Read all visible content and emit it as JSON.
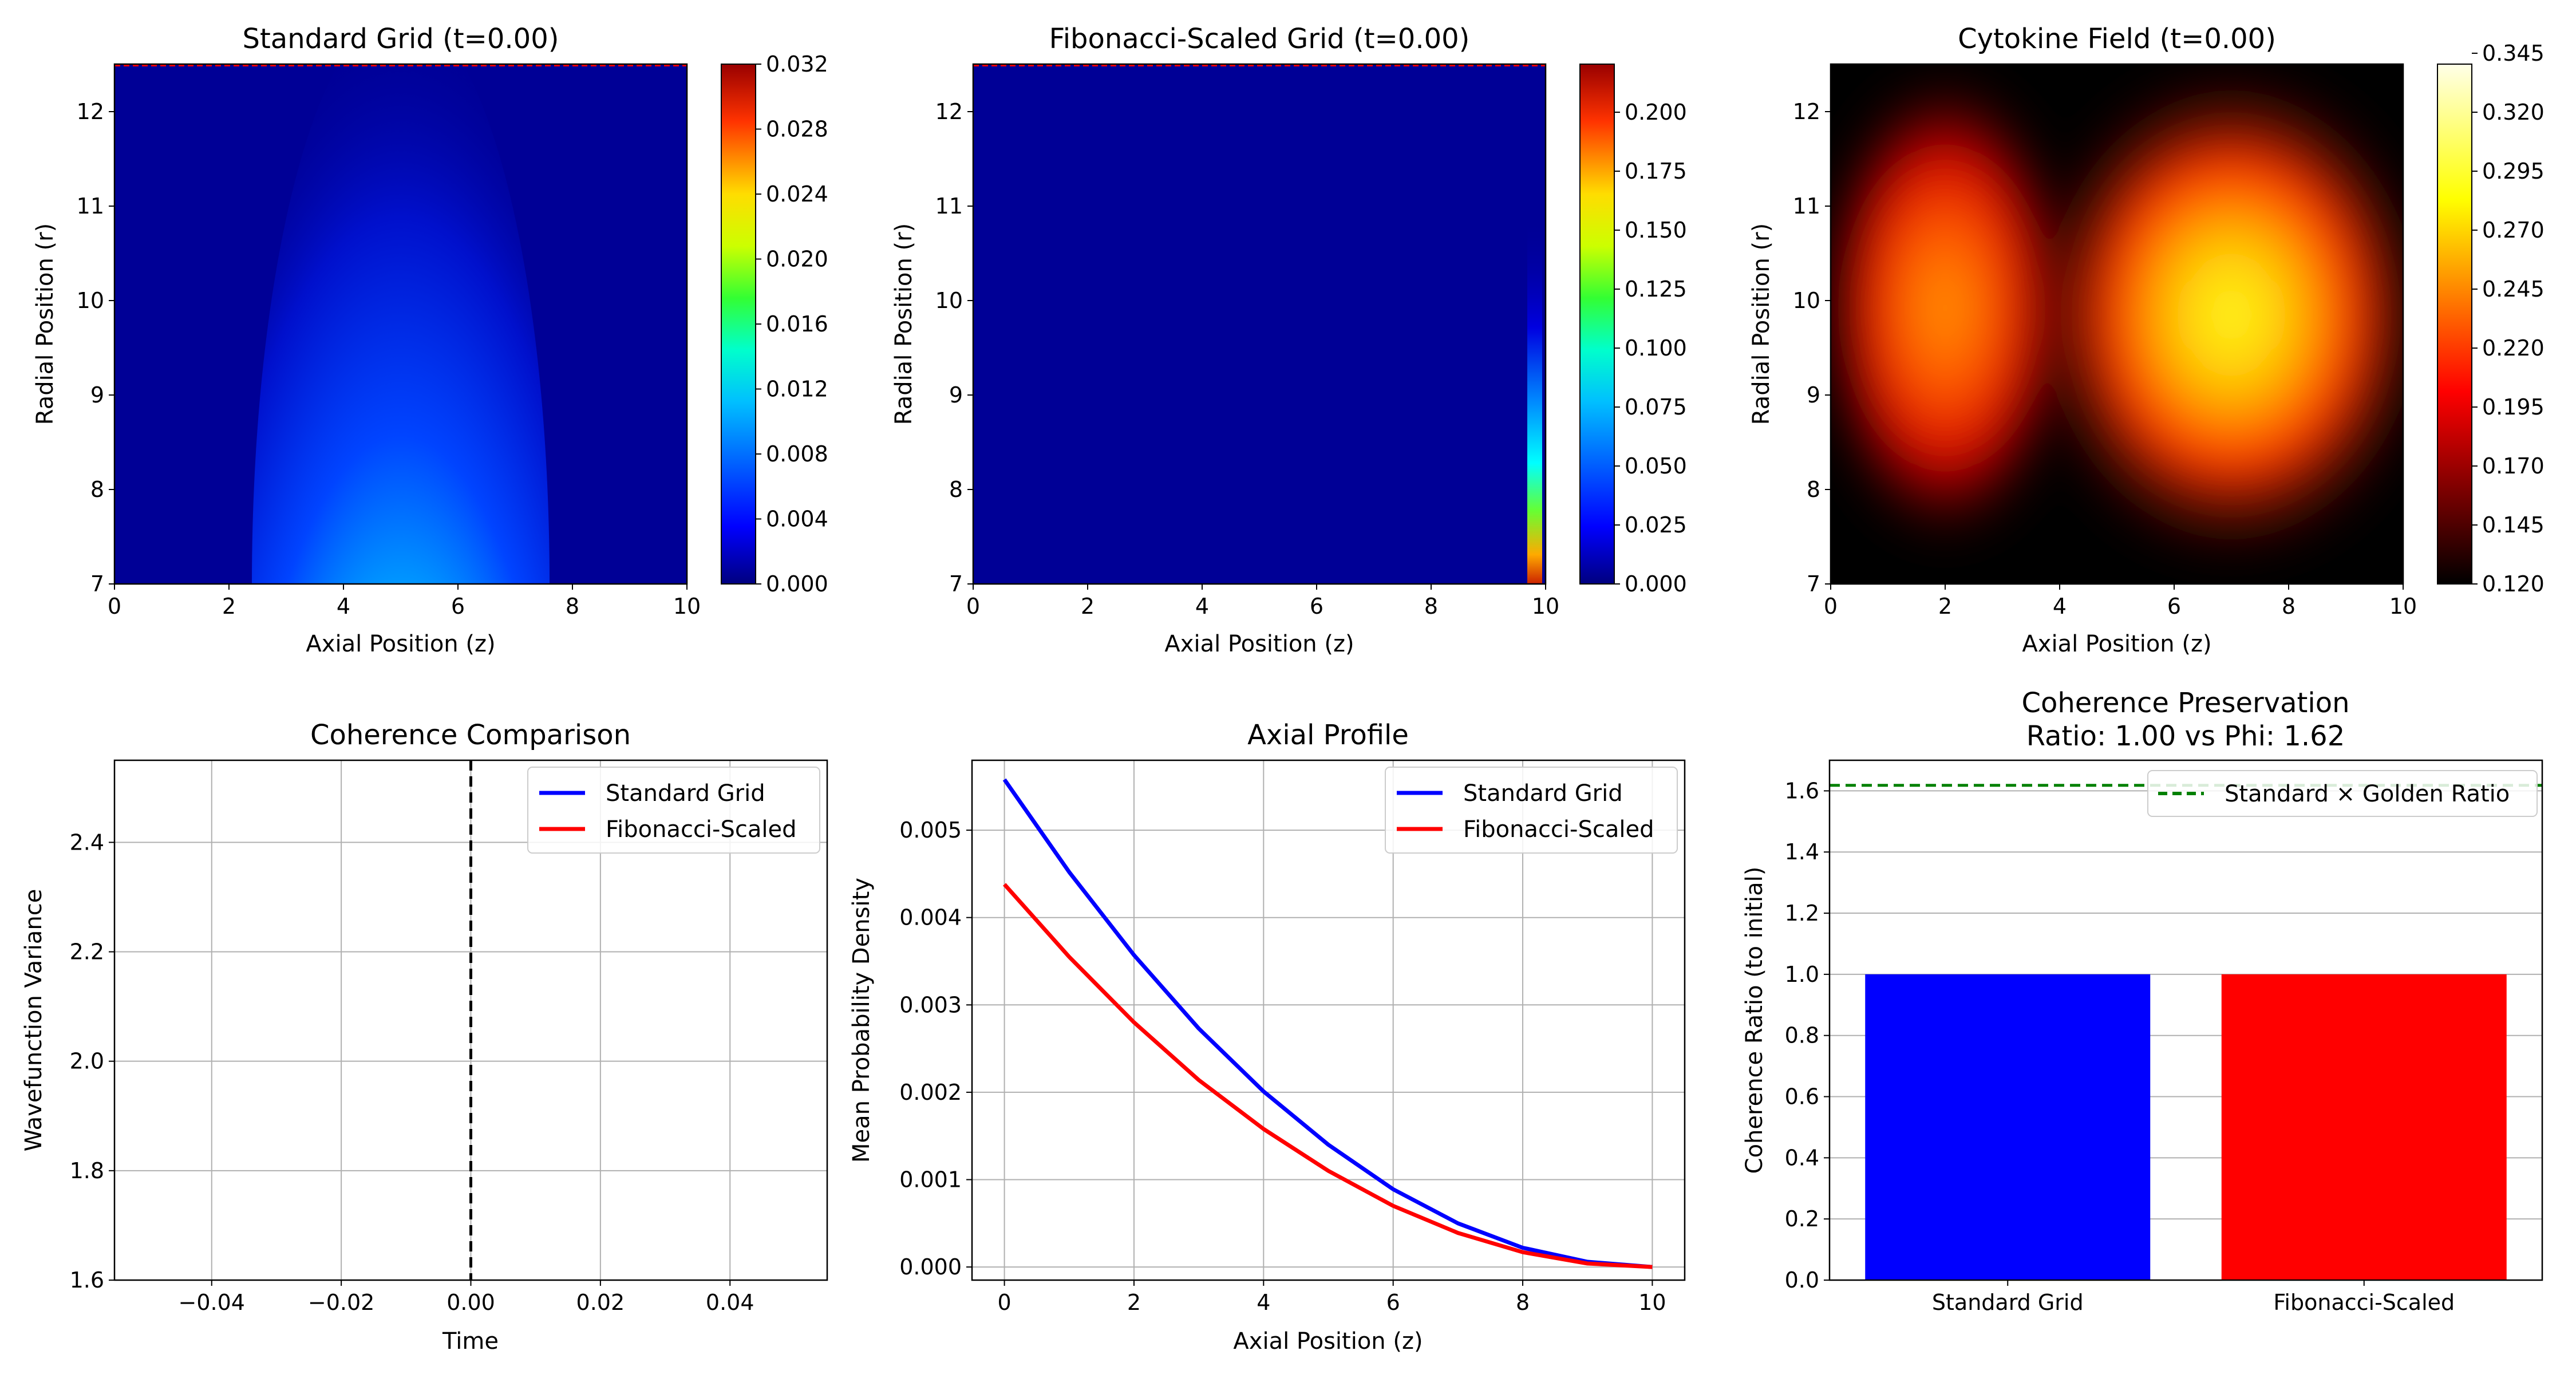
{
  "figure": {
    "background": "#ffffff"
  },
  "chart_data": [
    {
      "id": "standard-grid",
      "type": "heatmap",
      "title": "Standard Grid (t=0.00)",
      "xlabel": "Axial Position (z)",
      "ylabel": "Radial Position (r)",
      "xlim": [
        0,
        10
      ],
      "ylim": [
        7,
        12.5
      ],
      "xticks": [
        "0",
        "2",
        "4",
        "6",
        "8",
        "10"
      ],
      "yticks": [
        "7",
        "8",
        "9",
        "10",
        "11",
        "12"
      ],
      "colormap": "jet",
      "colorbar": {
        "range": [
          0,
          0.032
        ],
        "ticks": [
          "0.000",
          "0.004",
          "0.008",
          "0.012",
          "0.016",
          "0.020",
          "0.024",
          "0.028",
          "0.032"
        ]
      },
      "field": {
        "shape": "gaussian-dome",
        "center_z": 5,
        "base_r": 7,
        "peak": 0.032,
        "top_edge_line": true
      }
    },
    {
      "id": "fibonacci-grid",
      "type": "heatmap",
      "title": "Fibonacci-Scaled Grid (t=0.00)",
      "xlabel": "Axial Position (z)",
      "ylabel": "Radial Position (r)",
      "xlim": [
        0,
        10
      ],
      "ylim": [
        7,
        12.5
      ],
      "xticks": [
        "0",
        "2",
        "4",
        "6",
        "8",
        "10"
      ],
      "yticks": [
        "7",
        "8",
        "9",
        "10",
        "11",
        "12"
      ],
      "colormap": "jet",
      "colorbar": {
        "range": [
          0,
          0.22
        ],
        "ticks": [
          "0.000",
          "0.025",
          "0.050",
          "0.075",
          "0.100",
          "0.125",
          "0.150",
          "0.175",
          "0.200"
        ]
      },
      "field": {
        "shape": "edge-strip",
        "z_from": 9.7,
        "z_to": 10,
        "peak": 0.22,
        "top_edge_line": true
      }
    },
    {
      "id": "cytokine-field",
      "type": "heatmap",
      "title": "Cytokine Field (t=0.00)",
      "xlabel": "Axial Position (z)",
      "ylabel": "Radial Position (r)",
      "xlim": [
        0,
        10
      ],
      "ylim": [
        7,
        12.5
      ],
      "xticks": [
        "0",
        "2",
        "4",
        "6",
        "8",
        "10"
      ],
      "yticks": [
        "7",
        "8",
        "9",
        "10",
        "11",
        "12"
      ],
      "colormap": "hot",
      "colorbar": {
        "range": [
          0.12,
          0.36
        ],
        "ticks": [
          "0.120",
          "0.145",
          "0.170",
          "0.195",
          "0.220",
          "0.245",
          "0.270",
          "0.295",
          "0.320",
          "0.345"
        ]
      },
      "field": {
        "shape": "two-blobs",
        "blobs": [
          {
            "z": 2,
            "r": 9.8,
            "peak": 0.3
          },
          {
            "z": 7,
            "r": 9.7,
            "peak": 0.36
          }
        ],
        "floor": 0.12
      }
    },
    {
      "id": "coherence-comparison",
      "type": "line",
      "title": "Coherence Comparison",
      "xlabel": "Time",
      "ylabel": "Wavefunction Variance",
      "xlim": [
        -0.055,
        0.055
      ],
      "ylim": [
        1.6,
        2.55
      ],
      "xticks": [
        -0.04,
        -0.02,
        0.0,
        0.02,
        0.04
      ],
      "xtick_labels": [
        "−0.04",
        "−0.02",
        "0.00",
        "0.02",
        "0.04"
      ],
      "yticks": [
        1.6,
        1.8,
        2.0,
        2.2,
        2.4
      ],
      "ytick_labels": [
        "1.6",
        "1.8",
        "2.0",
        "2.2",
        "2.4"
      ],
      "vline": {
        "x": 0,
        "style": "dashed",
        "color": "#000000"
      },
      "grid": true,
      "legend": "top-right",
      "series": [
        {
          "name": "Standard Grid",
          "color": "#0000ff",
          "x": [],
          "y": []
        },
        {
          "name": "Fibonacci-Scaled",
          "color": "#ff0000",
          "x": [],
          "y": []
        }
      ]
    },
    {
      "id": "axial-profile",
      "type": "line",
      "title": "Axial Profile",
      "xlabel": "Axial Position (z)",
      "ylabel": "Mean Probability Density",
      "xlim": [
        -0.5,
        10.5
      ],
      "ylim": [
        -0.00015,
        0.0058
      ],
      "xticks": [
        0,
        2,
        4,
        6,
        8,
        10
      ],
      "xtick_labels": [
        "0",
        "2",
        "4",
        "6",
        "8",
        "10"
      ],
      "yticks": [
        0,
        0.001,
        0.002,
        0.003,
        0.004,
        0.005
      ],
      "ytick_labels": [
        "0.000",
        "0.001",
        "0.002",
        "0.003",
        "0.004",
        "0.005"
      ],
      "grid": true,
      "legend": "top-right",
      "series": [
        {
          "name": "Standard Grid",
          "color": "#0000ff",
          "x": [
            0,
            1,
            2,
            3,
            4,
            5,
            6,
            7,
            8,
            9,
            10
          ],
          "y": [
            0.00558,
            0.00452,
            0.00357,
            0.00273,
            0.00201,
            0.0014,
            0.00089,
            0.0005,
            0.00022,
            6e-05,
            0.0
          ]
        },
        {
          "name": "Fibonacci-Scaled",
          "color": "#ff0000",
          "x": [
            0,
            1,
            2,
            3,
            4,
            5,
            6,
            7,
            8,
            9,
            10
          ],
          "y": [
            0.00438,
            0.00355,
            0.0028,
            0.00214,
            0.00158,
            0.0011,
            0.0007,
            0.00039,
            0.00017,
            4e-05,
            0.0
          ]
        }
      ]
    },
    {
      "id": "coherence-preservation",
      "type": "bar",
      "title": "Coherence Preservation",
      "subtitle": "Ratio: 1.00 vs Phi: 1.62",
      "xlabel": "",
      "ylabel": "Coherence Ratio (to initial)",
      "ylim": [
        0,
        1.7
      ],
      "yticks": [
        0,
        0.2,
        0.4,
        0.6,
        0.8,
        1.0,
        1.2,
        1.4,
        1.6
      ],
      "ytick_labels": [
        "0.0",
        "0.2",
        "0.4",
        "0.6",
        "0.8",
        "1.0",
        "1.2",
        "1.4",
        "1.6"
      ],
      "categories": [
        "Standard Grid",
        "Fibonacci-Scaled"
      ],
      "values": [
        1.0,
        1.0
      ],
      "colors": [
        "#0000ff",
        "#ff0000"
      ],
      "hline": {
        "y": 1.618,
        "style": "dashed",
        "color": "#008000",
        "label": "Standard × Golden Ratio"
      },
      "grid": "y",
      "legend": "top-right"
    }
  ]
}
